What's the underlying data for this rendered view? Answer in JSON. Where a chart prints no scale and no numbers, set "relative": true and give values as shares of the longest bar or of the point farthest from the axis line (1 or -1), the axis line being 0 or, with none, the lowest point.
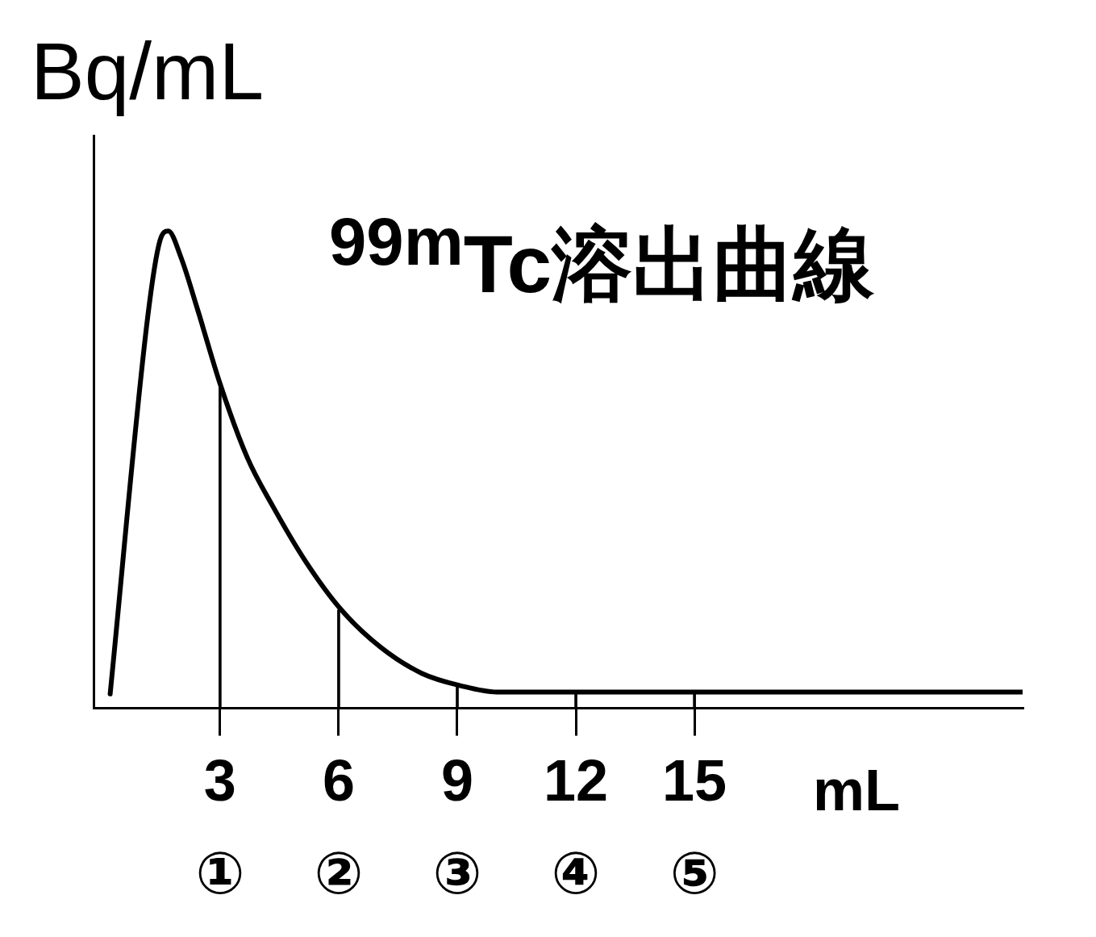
{
  "chart_data": {
    "type": "line",
    "title": "$^{99m}$Tc溶出曲線",
    "ylabel": "Bq/mL",
    "xlabel": "mL",
    "relative": true,
    "xlim": [
      -0.2,
      23.3
    ],
    "xticks": [
      {
        "value": 3,
        "label": "3\n①"
      },
      {
        "value": 6,
        "label": "6\n②"
      },
      {
        "value": 9,
        "label": "9\n③"
      },
      {
        "value": 12,
        "label": "12\n④"
      },
      {
        "value": 15,
        "label": "15\n⑤"
      }
    ],
    "marker": "none",
    "line_style": "solid",
    "series": [
      {
        "color": "#000000",
        "x": [
          0.22,
          1.17,
          1.48,
          1.69,
          2.01,
          2.43,
          3.0,
          3.69,
          4.33,
          5.17,
          6.07,
          7.06,
          8.11,
          9.1,
          10.0,
          23.3
        ],
        "values": [
          0.03,
          0.82,
          0.98,
          1.0,
          0.945,
          0.836,
          0.68,
          0.525,
          0.424,
          0.307,
          0.206,
          0.128,
          0.073,
          0.047,
          0.034,
          0.034
        ]
      },
      {
        "type": "bar",
        "color": "#000000",
        "x": [
          3,
          6,
          9,
          12,
          15
        ],
        "values": [
          0.68,
          0.206,
          0.047,
          0.034,
          0.034
        ]
      }
    ]
  }
}
